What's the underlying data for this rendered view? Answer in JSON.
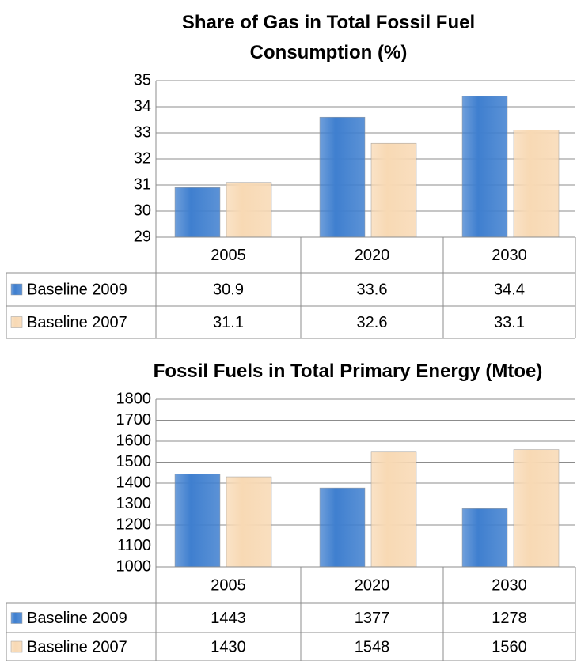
{
  "chart_data": [
    {
      "type": "bar",
      "title": "Share of Gas in Total Fossil Fuel Consumption (%)",
      "categories": [
        "2005",
        "2020",
        "2030"
      ],
      "series": [
        {
          "name": "Baseline 2009",
          "color": "#3f7fcf",
          "values": [
            30.9,
            33.6,
            34.4
          ]
        },
        {
          "name": "Baseline 2007",
          "color": "#f8d9b4",
          "values": [
            31.1,
            32.6,
            33.1
          ]
        }
      ],
      "ylim": [
        29,
        35
      ],
      "yticks": [
        29,
        30,
        31,
        32,
        33,
        34,
        35
      ],
      "grid": true
    },
    {
      "type": "bar",
      "title": "Fossil Fuels in Total Primary Energy (Mtoe)",
      "categories": [
        "2005",
        "2020",
        "2030"
      ],
      "series": [
        {
          "name": "Baseline 2009",
          "color": "#3f7fcf",
          "values": [
            1443,
            1377,
            1278
          ]
        },
        {
          "name": "Baseline 2007",
          "color": "#f8d9b4",
          "values": [
            1430,
            1548,
            1560
          ]
        }
      ],
      "ylim": [
        1000,
        1800
      ],
      "yticks": [
        1000,
        1100,
        1200,
        1300,
        1400,
        1500,
        1600,
        1700,
        1800
      ],
      "grid": true
    }
  ]
}
